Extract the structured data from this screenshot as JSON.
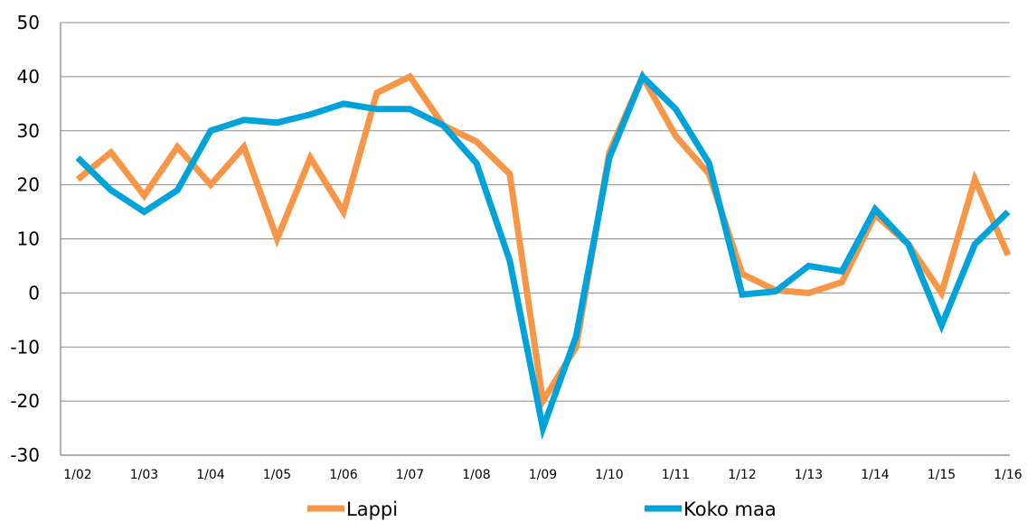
{
  "chart_data": {
    "type": "line",
    "title": "",
    "xlabel": "",
    "ylabel": "",
    "ylim": [
      -30,
      50
    ],
    "yticks": [
      -30,
      -20,
      -10,
      0,
      10,
      20,
      30,
      40,
      50
    ],
    "grid": "horizontal",
    "legend_position": "bottom",
    "x_tick_labels": [
      "1/02",
      "1/03",
      "1/04",
      "1/05",
      "1/06",
      "1/07",
      "1/08",
      "1/09",
      "1/10",
      "1/11",
      "1/12",
      "1/13",
      "1/14",
      "1/15",
      "1/16"
    ],
    "series": [
      {
        "name": "Lappi",
        "color": "#f79646",
        "values": [
          21,
          26,
          18,
          27,
          20,
          27,
          10,
          25,
          15,
          37,
          40,
          31,
          28,
          22,
          -20,
          -10,
          26,
          40,
          29,
          22,
          3.5,
          0.5,
          0,
          2,
          14.5,
          9,
          0,
          21,
          7
        ]
      },
      {
        "name": "Koko maa",
        "color": "#00a3d9",
        "values": [
          25,
          19,
          15,
          19,
          30,
          32,
          31.5,
          33,
          35,
          34,
          34,
          31,
          24,
          6,
          -25,
          -8,
          25,
          40,
          34,
          24,
          -0.3,
          0.3,
          5,
          4,
          15.5,
          9,
          -6,
          9,
          15
        ]
      }
    ]
  }
}
